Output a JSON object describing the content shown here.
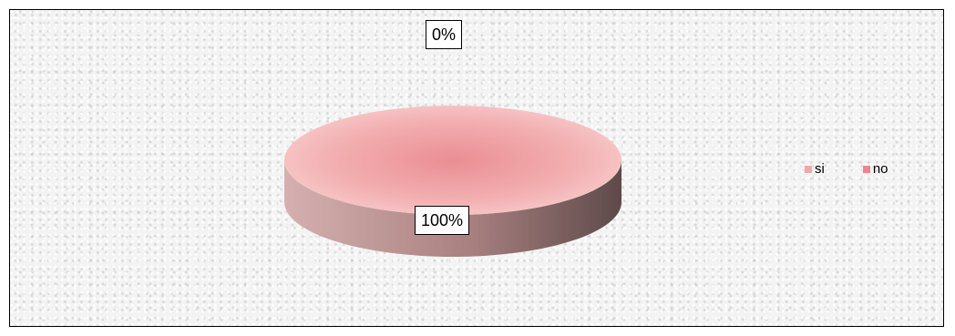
{
  "chart_data": {
    "type": "pie",
    "style": "3d",
    "categories": [
      "si",
      "no"
    ],
    "values": [
      100,
      0
    ],
    "data_labels": [
      "100%",
      "0%"
    ],
    "legend": {
      "position": "right",
      "entries": [
        "si",
        "no"
      ]
    },
    "colors": {
      "si": "#f2a8aa",
      "no": "#e8888a",
      "side_light": "#c39a9a",
      "side_dark": "#6e5656"
    }
  }
}
